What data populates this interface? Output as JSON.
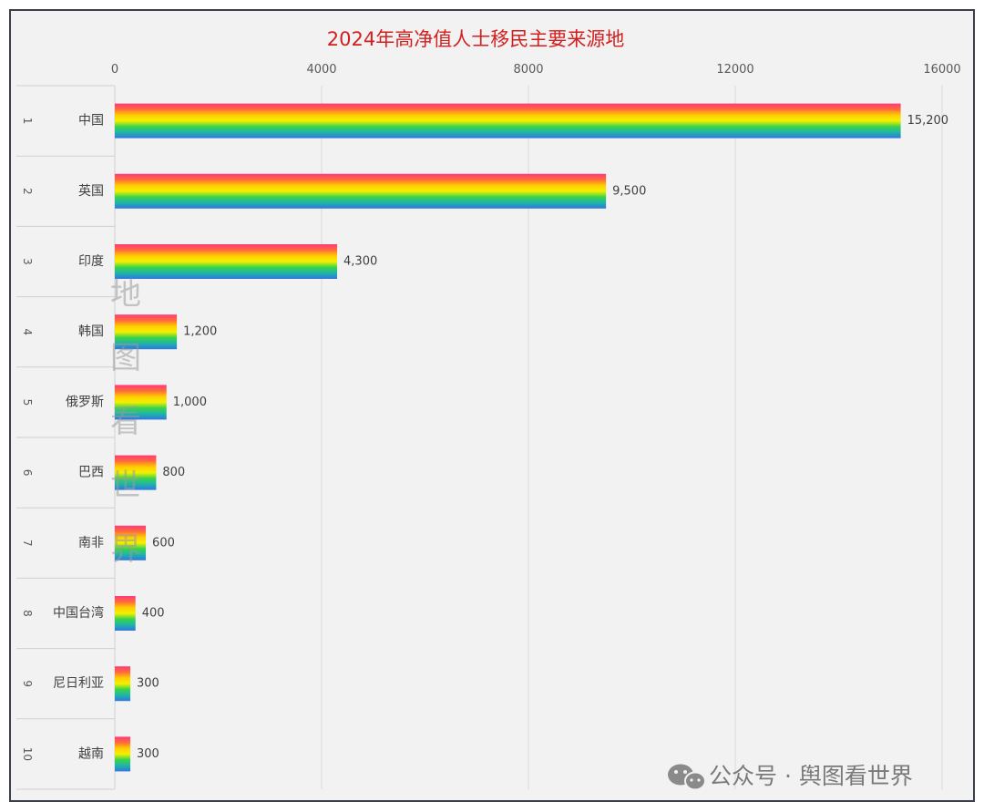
{
  "chart_data": {
    "type": "bar",
    "orientation": "horizontal",
    "title": "2024年高净值人士移民主要来源地",
    "xlim": [
      0,
      16000
    ],
    "xticks": [
      0,
      4000,
      8000,
      12000,
      16000
    ],
    "grid": true,
    "ranks": [
      "1",
      "2",
      "3",
      "4",
      "5",
      "6",
      "7",
      "8",
      "9",
      "10"
    ],
    "categories": [
      "中国",
      "英国",
      "印度",
      "韩国",
      "俄罗斯",
      "巴西",
      "南非",
      "中国台湾",
      "尼日利亚",
      "越南"
    ],
    "values": [
      15200,
      9500,
      4300,
      1200,
      1000,
      800,
      600,
      400,
      300,
      300
    ],
    "value_labels": [
      "15,200",
      "9,500",
      "4,300",
      "1,200",
      "1,000",
      "800",
      "600",
      "400",
      "300",
      "300"
    ],
    "bar_gradient": [
      "#ff3a7c",
      "#ff6a3a",
      "#ffcc00",
      "#f5f000",
      "#39d44a",
      "#1fb5a8",
      "#2f74e0"
    ]
  },
  "watermark": {
    "vertical_text": [
      "地",
      "图",
      "看",
      "世",
      "界"
    ]
  },
  "footer": {
    "icon": "wechat-icon",
    "text": "公众号 · 舆图看世界"
  }
}
